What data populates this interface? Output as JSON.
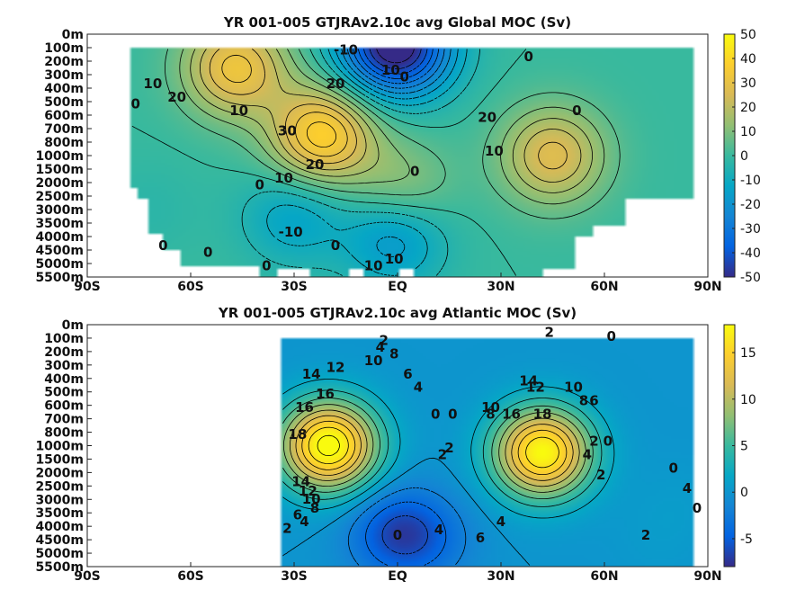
{
  "colors": {
    "parula": [
      "#352a87",
      "#0363e1",
      "#1485d4",
      "#06a7c6",
      "#38b99e",
      "#92bf73",
      "#d9ba56",
      "#fcce2e",
      "#f9fb0e"
    ],
    "background": "#ffffff",
    "contour": "#000000"
  },
  "chart_data": [
    {
      "type": "heatmap",
      "title": "YR 001-005 GTJRAv2.10c avg  Global MOC (Sv)",
      "xlabel": "",
      "ylabel": "",
      "x_ticks": [
        "90S",
        "60S",
        "30S",
        "EQ",
        "30N",
        "60N",
        "90N"
      ],
      "y_ticks": [
        "0m",
        "100m",
        "200m",
        "300m",
        "400m",
        "500m",
        "600m",
        "700m",
        "800m",
        "1000m",
        "1500m",
        "2000m",
        "2500m",
        "3000m",
        "3500m",
        "4000m",
        "4500m",
        "5000m",
        "5500m"
      ],
      "xlim": [
        -90,
        90
      ],
      "clim": [
        -50,
        50
      ],
      "colorbar_ticks": [
        "50",
        "40",
        "30",
        "20",
        "10",
        "0",
        "-10",
        "-20",
        "-30",
        "-40",
        "-50"
      ],
      "contour_labels": [
        "0",
        "10",
        "20",
        "10",
        "20",
        "30",
        "20",
        "10",
        "0",
        "-10",
        "0",
        "0",
        "0",
        "0",
        "10",
        "10",
        "0",
        "-10",
        "0",
        "10",
        "20",
        "10",
        "0",
        "0"
      ],
      "features": [
        {
          "x": -22,
          "y_level": 7.5,
          "value": 38
        },
        {
          "x": -47,
          "y_level": 2.5,
          "value": 32
        },
        {
          "x": 45,
          "y_level": 9,
          "value": 27
        },
        {
          "x": -30,
          "y_level": 13.5,
          "value": -14
        },
        {
          "x": -1,
          "y_level": 15,
          "value": -20
        },
        {
          "x": 3,
          "y_level": 1,
          "value": -28
        },
        {
          "x": -4,
          "y_level": 0.8,
          "value": -32
        },
        {
          "x": 1,
          "y_level": 11.5,
          "value": 14
        },
        {
          "x": -72,
          "y_level": 13,
          "value": -3
        }
      ]
    },
    {
      "type": "heatmap",
      "title": "YR 001-005 GTJRAv2.10c avg  Atlantic MOC (Sv)",
      "xlabel": "",
      "ylabel": "",
      "x_ticks": [
        "90S",
        "60S",
        "30S",
        "EQ",
        "30N",
        "60N",
        "90N"
      ],
      "y_ticks": [
        "0m",
        "100m",
        "200m",
        "300m",
        "400m",
        "500m",
        "600m",
        "700m",
        "800m",
        "1000m",
        "1500m",
        "2000m",
        "2500m",
        "3000m",
        "3500m",
        "4000m",
        "4500m",
        "5000m",
        "5500m"
      ],
      "xlim": [
        -90,
        90
      ],
      "clim": [
        -8,
        18
      ],
      "colorbar_ticks": [
        "15",
        "10",
        "5",
        "0",
        "-5"
      ],
      "contour_labels": [
        "2",
        "4",
        "8",
        "10",
        "12",
        "14",
        "16",
        "16",
        "18",
        "6",
        "4",
        "0",
        "0",
        "2",
        "2",
        "14",
        "12",
        "10",
        "8",
        "6",
        "4",
        "2",
        "4",
        "0",
        "6",
        "4",
        "10",
        "8",
        "12",
        "16",
        "18",
        "14",
        "10",
        "8",
        "6",
        "2",
        "0",
        "2",
        "4",
        "2",
        "0",
        "0",
        "2",
        "4",
        "0"
      ],
      "features": [
        {
          "x": -20,
          "y_level": 9,
          "value": 19
        },
        {
          "x": 42,
          "y_level": 9.5,
          "value": 18
        },
        {
          "x": 0,
          "y_level": 15.5,
          "value": -6
        },
        {
          "x": 10,
          "y_level": 16,
          "value": -2
        },
        {
          "x": 82,
          "y_level": 13,
          "value": 0.5
        },
        {
          "x": 75,
          "y_level": 16,
          "value": 0.5
        }
      ]
    }
  ]
}
